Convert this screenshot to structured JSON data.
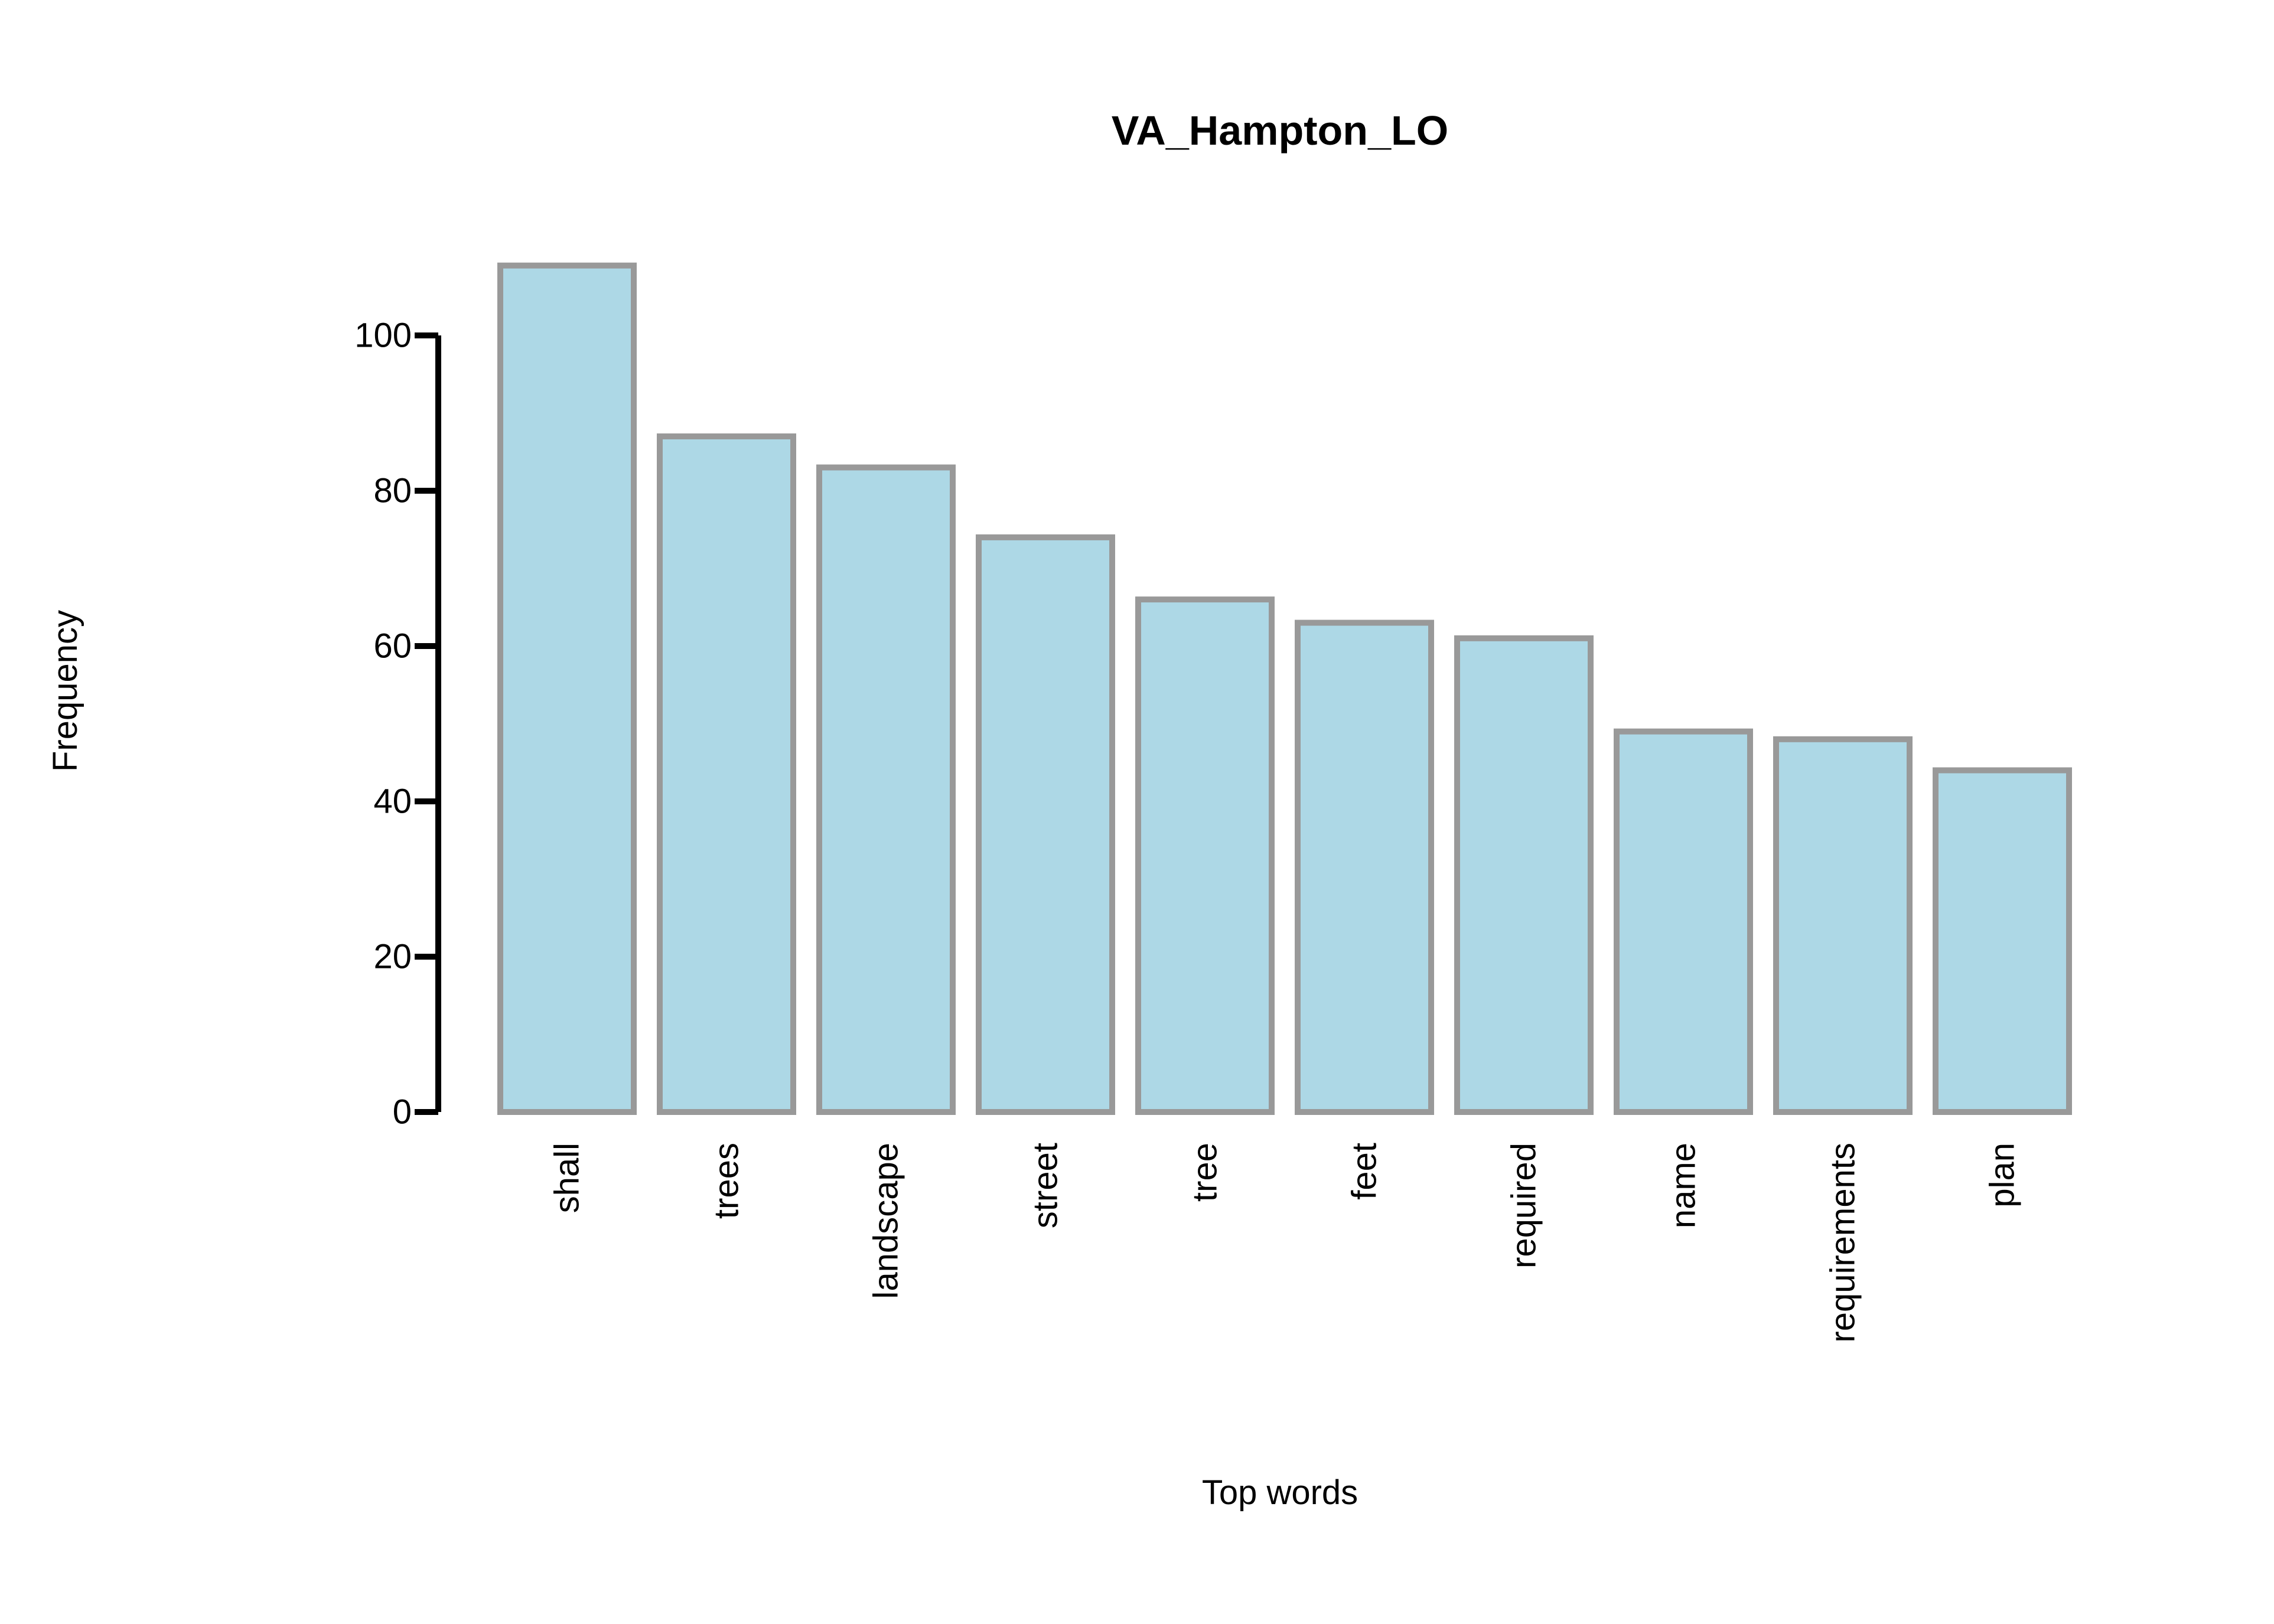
{
  "chart_data": {
    "type": "bar",
    "title": "VA_Hampton_LO",
    "xlabel": "Top words",
    "ylabel": "Frequency",
    "categories": [
      "shall",
      "trees",
      "landscape",
      "street",
      "tree",
      "feet",
      "required",
      "name",
      "requirements",
      "plan"
    ],
    "values": [
      109,
      87,
      83,
      74,
      66,
      63,
      61,
      49,
      48,
      44
    ],
    "yticks": [
      0,
      20,
      40,
      60,
      80,
      100
    ],
    "ylim": [
      0,
      109
    ],
    "grid": false,
    "legend": "none",
    "colors": {
      "bar_fill": "#add8e6",
      "bar_stroke": "#999999",
      "axis": "#000000"
    }
  }
}
